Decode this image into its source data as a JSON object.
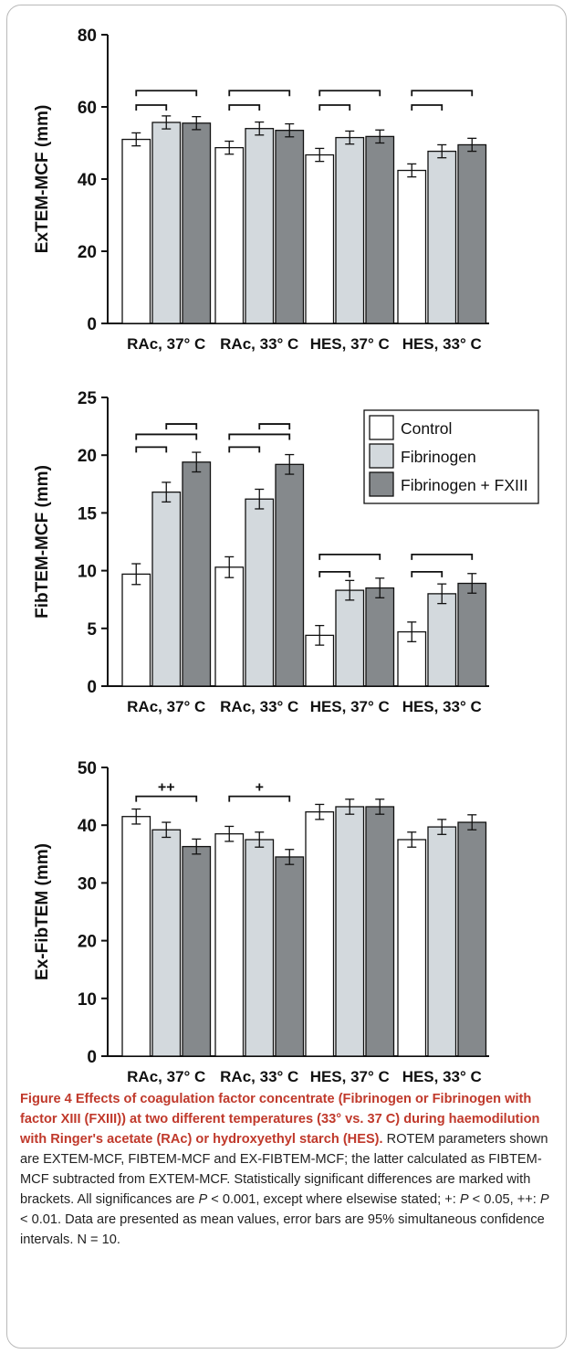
{
  "chart_data": [
    {
      "type": "bar",
      "ylabel": "ExTEM-MCF (mm)",
      "ylim": [
        0,
        80
      ],
      "yticks": [
        0,
        20,
        40,
        60,
        80
      ],
      "categories": [
        "RAc, 37° C",
        "RAc, 33° C",
        "HES, 37° C",
        "HES, 33° C"
      ],
      "series": [
        {
          "values": [
            51,
            48.7,
            46.7,
            42.4
          ],
          "err": [
            1.8,
            1.8,
            1.8,
            1.8
          ]
        },
        {
          "values": [
            55.7,
            54,
            51.5,
            47.7
          ],
          "err": [
            1.8,
            1.8,
            1.8,
            1.8
          ]
        },
        {
          "values": [
            55.5,
            53.5,
            51.8,
            49.5
          ],
          "err": [
            1.8,
            1.8,
            1.8,
            1.8
          ]
        }
      ],
      "brackets": [
        {
          "group": 0,
          "from": 0,
          "to": 1,
          "y": 60.5,
          "label": ""
        },
        {
          "group": 0,
          "from": 0,
          "to": 2,
          "y": 64.5,
          "label": ""
        },
        {
          "group": 1,
          "from": 0,
          "to": 1,
          "y": 60.5,
          "label": ""
        },
        {
          "group": 1,
          "from": 0,
          "to": 2,
          "y": 64.5,
          "label": ""
        },
        {
          "group": 2,
          "from": 0,
          "to": 1,
          "y": 60.5,
          "label": ""
        },
        {
          "group": 2,
          "from": 0,
          "to": 2,
          "y": 64.5,
          "label": ""
        },
        {
          "group": 3,
          "from": 0,
          "to": 1,
          "y": 60.5,
          "label": ""
        },
        {
          "group": 3,
          "from": 0,
          "to": 2,
          "y": 64.5,
          "label": ""
        }
      ]
    },
    {
      "type": "bar",
      "ylabel": "FibTEM-MCF (mm)",
      "ylim": [
        0,
        25
      ],
      "yticks": [
        0,
        5,
        10,
        15,
        20,
        25
      ],
      "categories": [
        "RAc, 37° C",
        "RAc, 33° C",
        "HES, 37° C",
        "HES, 33° C"
      ],
      "legend": [
        "Control",
        "Fibrinogen",
        "Fibrinogen + FXIII"
      ],
      "series": [
        {
          "name": "Control",
          "values": [
            9.7,
            10.3,
            4.4,
            4.7
          ],
          "err": [
            0.9,
            0.9,
            0.85,
            0.85
          ]
        },
        {
          "name": "Fibrinogen",
          "values": [
            16.8,
            16.2,
            8.3,
            8.0
          ],
          "err": [
            0.85,
            0.85,
            0.85,
            0.85
          ]
        },
        {
          "name": "Fibrinogen + FXIII",
          "values": [
            19.4,
            19.2,
            8.5,
            8.9
          ],
          "err": [
            0.85,
            0.85,
            0.85,
            0.85
          ]
        }
      ],
      "brackets": [
        {
          "group": 0,
          "from": 0,
          "to": 1,
          "y": 20.7,
          "label": ""
        },
        {
          "group": 0,
          "from": 0,
          "to": 2,
          "y": 21.8,
          "label": ""
        },
        {
          "group": 0,
          "from": 1,
          "to": 2,
          "y": 22.7,
          "label": ""
        },
        {
          "group": 1,
          "from": 0,
          "to": 1,
          "y": 20.7,
          "label": ""
        },
        {
          "group": 1,
          "from": 0,
          "to": 2,
          "y": 21.8,
          "label": ""
        },
        {
          "group": 1,
          "from": 1,
          "to": 2,
          "y": 22.7,
          "label": ""
        },
        {
          "group": 2,
          "from": 0,
          "to": 1,
          "y": 9.9,
          "label": ""
        },
        {
          "group": 2,
          "from": 0,
          "to": 2,
          "y": 11.4,
          "label": ""
        },
        {
          "group": 3,
          "from": 0,
          "to": 1,
          "y": 9.9,
          "label": ""
        },
        {
          "group": 3,
          "from": 0,
          "to": 2,
          "y": 11.4,
          "label": ""
        }
      ]
    },
    {
      "type": "bar",
      "ylabel": "Ex-FibTEM (mm)",
      "ylim": [
        0,
        50
      ],
      "yticks": [
        0,
        10,
        20,
        30,
        40,
        50
      ],
      "categories": [
        "RAc, 37° C",
        "RAc, 33° C",
        "HES, 37° C",
        "HES, 33° C"
      ],
      "series": [
        {
          "values": [
            41.5,
            38.5,
            42.3,
            37.5
          ],
          "err": [
            1.3,
            1.3,
            1.3,
            1.3
          ]
        },
        {
          "values": [
            39.2,
            37.5,
            43.2,
            39.7
          ],
          "err": [
            1.3,
            1.3,
            1.3,
            1.3
          ]
        },
        {
          "values": [
            36.3,
            34.5,
            43.2,
            40.5
          ],
          "err": [
            1.3,
            1.3,
            1.3,
            1.3
          ]
        }
      ],
      "brackets": [
        {
          "group": 0,
          "from": 0,
          "to": 2,
          "y": 45,
          "label": "++"
        },
        {
          "group": 1,
          "from": 0,
          "to": 2,
          "y": 45,
          "label": "+"
        }
      ]
    }
  ],
  "colors": {
    "bar_fills": [
      "#ffffff",
      "#d3d9dd",
      "#85898c"
    ],
    "stroke": "#111111",
    "caption_title": "#c0392b"
  },
  "caption": {
    "title": "Figure 4 Effects of coagulation factor concentrate (Fibrinogen or Fibrinogen with factor XIII (FXIII)) at two different temperatures (33° vs. 37 C) during haemodilution with Ringer's acetate (RAc) or hydroxyethyl starch (HES).",
    "body_1": " ROTEM parameters shown are EXTEM-MCF, FIBTEM-MCF and EX-FIBTEM-MCF; the latter calculated as FIBTEM-MCF subtracted from EXTEM-MCF. Statistically significant differences are marked with brackets. All significances are ",
    "p1": "P",
    "body_2": " < 0.001, except where elsewise stated; +: ",
    "p2": "P",
    "body_3": " < 0.05, ++: ",
    "p3": "P",
    "body_4": " < 0.01. Data are presented as mean values, error bars are 95% simultaneous confidence intervals. N = 10."
  }
}
